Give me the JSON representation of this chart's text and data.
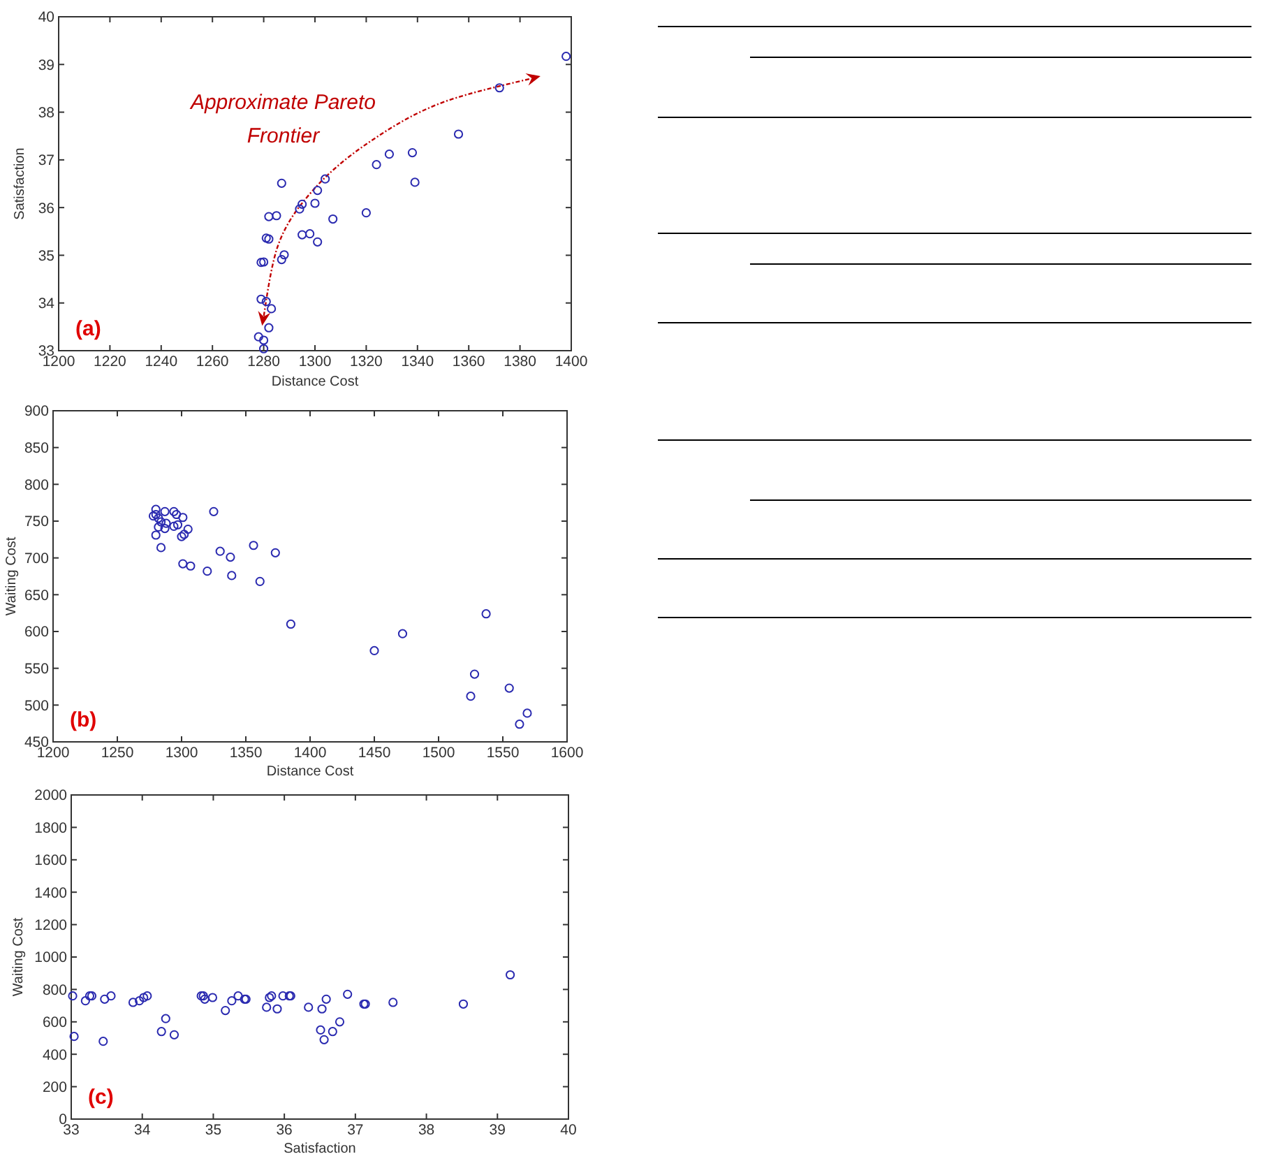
{
  "chart_data": [
    {
      "type": "scatter",
      "xlabel": "Distance Cost",
      "ylabel": "Satisfaction",
      "marker": "circle",
      "color": "#2a2ab0",
      "xlim": [
        1200,
        1400
      ],
      "xticks": [
        1200,
        1220,
        1240,
        1260,
        1280,
        1300,
        1320,
        1340,
        1360,
        1380,
        1400
      ],
      "ylim": [
        33,
        40
      ],
      "yticks": [
        33,
        34,
        35,
        36,
        37,
        38,
        39,
        40
      ],
      "x": [
        1398,
        1372,
        1356,
        1338,
        1329,
        1324,
        1339,
        1304,
        1301,
        1287,
        1300,
        1295,
        1294,
        1320,
        1307,
        1285,
        1282,
        1298,
        1295,
        1301,
        1281,
        1282,
        1288,
        1287,
        1279,
        1280,
        1279,
        1281,
        1283,
        1282,
        1278,
        1280,
        1280
      ],
      "values": [
        39.17,
        38.51,
        37.54,
        37.15,
        37.12,
        36.9,
        36.53,
        36.6,
        36.36,
        36.51,
        36.09,
        36.07,
        35.97,
        35.89,
        35.76,
        35.83,
        35.81,
        35.45,
        35.43,
        35.28,
        35.36,
        35.34,
        35.01,
        34.91,
        34.85,
        34.86,
        34.08,
        34.03,
        33.88,
        33.48,
        33.29,
        33.22,
        33.04
      ],
      "annotations": [
        "(a)",
        "Approximate Pareto Frontier"
      ]
    },
    {
      "type": "scatter",
      "xlabel": "Distance Cost",
      "ylabel": "Waiting Cost",
      "marker": "circle",
      "color": "#2a2ab0",
      "xlim": [
        1200,
        1600
      ],
      "xticks": [
        1200,
        1250,
        1300,
        1350,
        1400,
        1450,
        1500,
        1550,
        1600
      ],
      "ylim": [
        450,
        900
      ],
      "yticks": [
        450,
        500,
        550,
        600,
        650,
        700,
        750,
        800,
        850,
        900
      ],
      "x": [
        1280,
        1280,
        1278,
        1282,
        1284,
        1287,
        1294,
        1296,
        1301,
        1297,
        1288,
        1294,
        1287,
        1282,
        1280,
        1300,
        1302,
        1305,
        1284,
        1325,
        1356,
        1330,
        1338,
        1373,
        1301,
        1307,
        1320,
        1339,
        1361,
        1385,
        1450,
        1472,
        1537,
        1528,
        1525,
        1555,
        1569,
        1563
      ],
      "values": [
        766,
        759,
        757,
        754,
        749,
        763,
        763,
        759,
        755,
        745,
        747,
        743,
        740,
        742,
        731,
        729,
        732,
        739,
        714,
        763,
        717,
        709,
        701,
        707,
        692,
        689,
        682,
        676,
        668,
        610,
        574,
        597,
        624,
        542,
        512,
        523,
        489,
        474
      ],
      "annotations": [
        "(b)"
      ]
    },
    {
      "type": "scatter",
      "xlabel": "Satisfaction",
      "ylabel": "Waiting Cost",
      "marker": "circle",
      "color": "#2a2ab0",
      "xlim": [
        33,
        40
      ],
      "xticks": [
        33,
        34,
        35,
        36,
        37,
        38,
        39,
        40
      ],
      "ylim": [
        0,
        2000
      ],
      "yticks": [
        0,
        200,
        400,
        600,
        800,
        1000,
        1200,
        1400,
        1600,
        1800,
        2000
      ],
      "x": [
        33.02,
        33.04,
        33.2,
        33.26,
        33.29,
        33.45,
        33.47,
        33.56,
        33.87,
        33.96,
        34.02,
        34.07,
        34.27,
        34.33,
        34.45,
        34.83,
        34.86,
        34.88,
        34.99,
        35.17,
        35.26,
        35.35,
        35.44,
        35.46,
        35.75,
        35.79,
        35.82,
        35.9,
        35.98,
        36.07,
        36.09,
        36.34,
        36.51,
        36.53,
        36.56,
        36.59,
        36.68,
        36.78,
        36.89,
        37.12,
        37.14,
        37.53,
        38.52,
        39.18
      ],
      "values": [
        760,
        510,
        730,
        760,
        760,
        480,
        740,
        760,
        720,
        730,
        750,
        760,
        540,
        620,
        520,
        760,
        760,
        740,
        750,
        670,
        730,
        760,
        740,
        740,
        690,
        750,
        760,
        680,
        760,
        760,
        760,
        690,
        550,
        680,
        490,
        740,
        540,
        600,
        770,
        710,
        710,
        720,
        710,
        890
      ],
      "annotations": [
        "(c)"
      ]
    }
  ]
}
